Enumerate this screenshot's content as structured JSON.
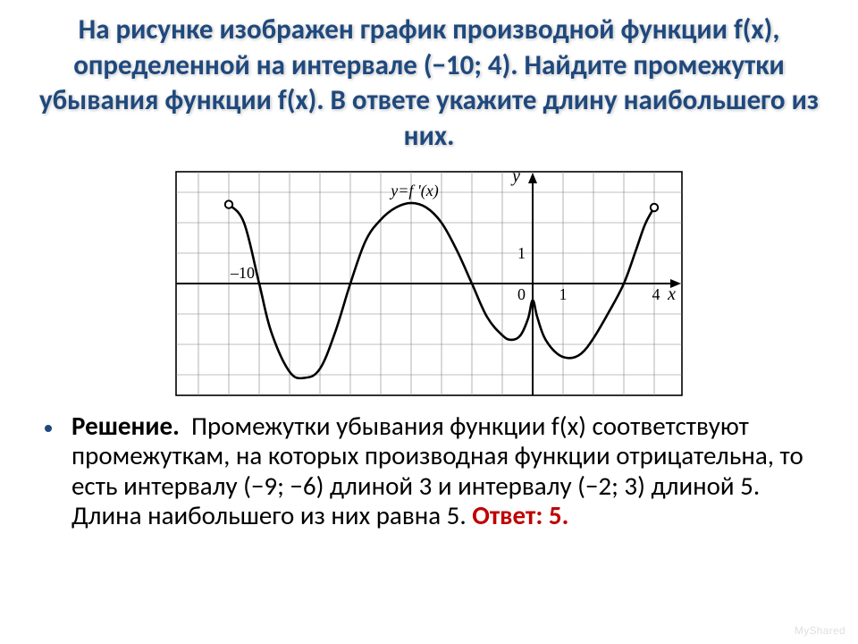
{
  "title_text": "На рисунке изображен график производной функции f(x), определенной на интервале (−10; 4). Найдите промежутки убывания функции f(x). В ответе укажите длину наибольшего из них.",
  "title_color": "#1f497d",
  "solution": {
    "label": "Решение.",
    "body": "Промежутки убывания функции f(x) соответствуют промежуткам, на которых производная функции отрицательна, то есть интервалу (−9; −6) длиной 3 и интервалу (−2; 3) длиной 5. Длина наибольшего из них равна 5.",
    "answer_label": "Ответ: 5."
  },
  "bullet_color": "#1f497d",
  "answer_color": "#c00000",
  "watermark": "MyShared",
  "chart": {
    "type": "line",
    "grid_color": "#808080",
    "axis_color": "#000000",
    "curve_color": "#000000",
    "background": "#ffffff",
    "xlim": [
      -11,
      5
    ],
    "ylim": [
      -4,
      4
    ],
    "x_axis_label": "x",
    "y_axis_label": "y",
    "x_tick_label_pos": -10,
    "x_tick_label_text": "–10",
    "x_tick_zero": "0",
    "x_tick_one": "1",
    "y_tick_one": "1",
    "x_tick_four": "4",
    "curve_label": "y=f '(x)",
    "open_points_x": [
      -10,
      4
    ],
    "curve_points": [
      [
        -10,
        2.6
      ],
      [
        -9.5,
        2.0
      ],
      [
        -9,
        0.0
      ],
      [
        -8.6,
        -1.6
      ],
      [
        -8,
        -2.9
      ],
      [
        -7.5,
        -3.1
      ],
      [
        -7,
        -2.8
      ],
      [
        -6.5,
        -1.6
      ],
      [
        -6,
        0.0
      ],
      [
        -5.5,
        1.4
      ],
      [
        -5,
        2.1
      ],
      [
        -4.5,
        2.5
      ],
      [
        -4,
        2.65
      ],
      [
        -3.5,
        2.5
      ],
      [
        -3,
        2.0
      ],
      [
        -2.5,
        1.1
      ],
      [
        -2,
        0.0
      ],
      [
        -1.5,
        -1.1
      ],
      [
        -1,
        -1.7
      ],
      [
        -0.7,
        -1.85
      ],
      [
        -0.4,
        -1.7
      ],
      [
        -0.15,
        -1.15
      ],
      [
        0,
        -0.55
      ],
      [
        0.15,
        -1.1
      ],
      [
        0.4,
        -1.8
      ],
      [
        0.8,
        -2.3
      ],
      [
        1.2,
        -2.45
      ],
      [
        1.6,
        -2.3
      ],
      [
        2.0,
        -1.8
      ],
      [
        2.5,
        -0.95
      ],
      [
        3,
        0.0
      ],
      [
        3.4,
        1.1
      ],
      [
        3.7,
        1.95
      ],
      [
        4,
        2.5
      ]
    ]
  }
}
